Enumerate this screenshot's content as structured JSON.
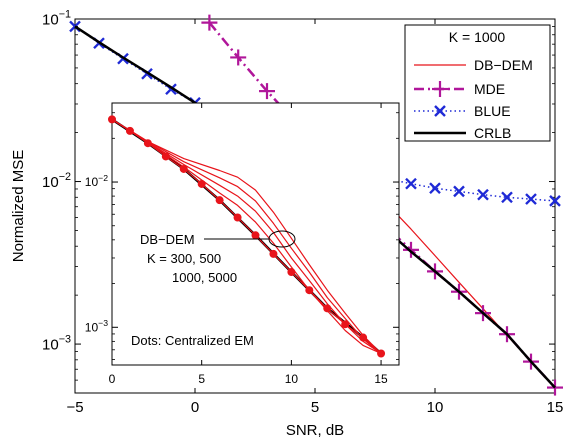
{
  "chart_data": [
    {
      "type": "line",
      "xlabel": "SNR, dB",
      "ylabel": "Normalized MSE",
      "xlim": [
        -5,
        15
      ],
      "ylim": [
        0.0005,
        0.1
      ],
      "yscale": "log",
      "xticks": [
        "−5",
        "0",
        "5",
        "10",
        "15"
      ],
      "yticks": [
        {
          "v": 0.1,
          "base": "10",
          "exp": "−1"
        },
        {
          "v": 0.01,
          "base": "10",
          "exp": "−2"
        },
        {
          "v": 0.001,
          "base": "10",
          "exp": "−3"
        }
      ],
      "legend": {
        "title": "K = 1000",
        "position": "top-right",
        "entries": [
          "DB−DEM",
          "MDE",
          "BLUE",
          "CRLB"
        ]
      },
      "series": [
        {
          "name": "DB−DEM",
          "color": "#e8141b",
          "style": "solid",
          "x": [
            -5,
            -2,
            0,
            2,
            4,
            5,
            6,
            7,
            8,
            9,
            10,
            11,
            12,
            13,
            14,
            15
          ],
          "y": [
            0.09,
            0.047,
            0.0305,
            0.02,
            0.0145,
            0.0128,
            0.0113,
            0.0095,
            0.0073,
            0.0051,
            0.0035,
            0.0024,
            0.00165,
            0.00113,
            0.00078,
            0.00054
          ]
        },
        {
          "name": "MDE",
          "color": "#b0169a",
          "style": "dashdot",
          "marker": "plus",
          "x": [
            0.6,
            1.8,
            3,
            4,
            5,
            6,
            7,
            8,
            9,
            10,
            11,
            12,
            13,
            14,
            15
          ],
          "y": [
            0.095,
            0.058,
            0.036,
            0.025,
            0.0165,
            0.0105,
            0.0072,
            0.0052,
            0.0038,
            0.0028,
            0.0021,
            0.00155,
            0.00115,
            0.00078,
            0.00054
          ]
        },
        {
          "name": "BLUE",
          "color": "#1f2ad6",
          "style": "dotted",
          "marker": "x",
          "x": [
            -5,
            -4,
            -3,
            -2,
            -1,
            0,
            1,
            2,
            3,
            4,
            5,
            6,
            7,
            8,
            9,
            10,
            11,
            12,
            13,
            14,
            15
          ],
          "y": [
            0.09,
            0.071,
            0.057,
            0.046,
            0.037,
            0.0305,
            0.025,
            0.021,
            0.0178,
            0.0155,
            0.0138,
            0.0124,
            0.0113,
            0.0104,
            0.0097,
            0.0091,
            0.0087,
            0.0083,
            0.008,
            0.0078,
            0.0076
          ]
        },
        {
          "name": "CRLB",
          "color": "#000000",
          "style": "solid",
          "x": [
            -5,
            -4,
            -3,
            -2,
            -1,
            0,
            1,
            2,
            3,
            4,
            5,
            6,
            7,
            8,
            9,
            10,
            11,
            12,
            13,
            14,
            15
          ],
          "y": [
            0.09,
            0.072,
            0.058,
            0.047,
            0.038,
            0.0305,
            0.0245,
            0.0198,
            0.0168,
            0.0145,
            0.0118,
            0.0092,
            0.0068,
            0.005,
            0.0037,
            0.0028,
            0.0021,
            0.00155,
            0.00115,
            0.00078,
            0.00054
          ]
        }
      ]
    },
    {
      "type": "line",
      "xlim": [
        0,
        16
      ],
      "ylim": [
        0.00055,
        0.035
      ],
      "yscale": "log",
      "xticks": [
        "0",
        "5",
        "10",
        "15"
      ],
      "yticks": [
        {
          "v": 0.01,
          "base": "10",
          "exp": "−2"
        },
        {
          "v": 0.001,
          "base": "10",
          "exp": "−3"
        }
      ],
      "annotations": {
        "label": "DB−DEM",
        "k_line1": "K = 300, 500",
        "k_line2": "1000, 5000",
        "dots_note": "Dots: Centralized EM"
      },
      "series": [
        {
          "name": "CRLB",
          "color": "#000000",
          "x": [
            0,
            2,
            4,
            6,
            8,
            10,
            12,
            14,
            15
          ],
          "y": [
            0.027,
            0.0185,
            0.0123,
            0.0075,
            0.0043,
            0.0024,
            0.00135,
            0.00085,
            0.00066
          ]
        },
        {
          "name": "K = 300",
          "color": "#e8141b",
          "x": [
            0,
            2,
            4,
            6,
            7,
            8,
            9,
            10,
            11,
            12,
            13,
            14,
            15
          ],
          "y": [
            0.027,
            0.019,
            0.0145,
            0.012,
            0.0108,
            0.0088,
            0.0062,
            0.0041,
            0.0027,
            0.0018,
            0.00125,
            0.00088,
            0.00066
          ]
        },
        {
          "name": "K = 500",
          "color": "#e8141b",
          "x": [
            0,
            2,
            4,
            6,
            7,
            8,
            9,
            10,
            11,
            12,
            13,
            14,
            15
          ],
          "y": [
            0.027,
            0.019,
            0.0138,
            0.0107,
            0.0093,
            0.0074,
            0.0052,
            0.0035,
            0.0024,
            0.0016,
            0.00115,
            0.00083,
            0.00066
          ]
        },
        {
          "name": "K = 1000",
          "color": "#e8141b",
          "x": [
            0,
            2,
            4,
            6,
            7,
            8,
            9,
            10,
            11,
            12,
            13,
            14,
            15
          ],
          "y": [
            0.027,
            0.0188,
            0.0132,
            0.0095,
            0.008,
            0.0063,
            0.0045,
            0.003,
            0.0021,
            0.00145,
            0.00105,
            0.0008,
            0.00066
          ]
        },
        {
          "name": "K = 5000",
          "color": "#e8141b",
          "x": [
            0,
            2,
            4,
            6,
            7,
            8,
            9,
            10,
            11,
            12,
            13,
            14,
            15
          ],
          "y": [
            0.027,
            0.0187,
            0.0127,
            0.0084,
            0.0069,
            0.0053,
            0.0038,
            0.0026,
            0.0018,
            0.0013,
            0.00095,
            0.00075,
            0.00066
          ]
        },
        {
          "name": "Centralized EM",
          "color": "#e8141b",
          "marker": "dot",
          "x": [
            0,
            1,
            2,
            3,
            4,
            5,
            6,
            7,
            8,
            9,
            10,
            11,
            12,
            13,
            14,
            15
          ],
          "y": [
            0.027,
            0.0225,
            0.0185,
            0.015,
            0.0123,
            0.0097,
            0.0075,
            0.0057,
            0.0043,
            0.0032,
            0.0024,
            0.0018,
            0.00135,
            0.00105,
            0.00085,
            0.00066
          ]
        }
      ]
    }
  ]
}
